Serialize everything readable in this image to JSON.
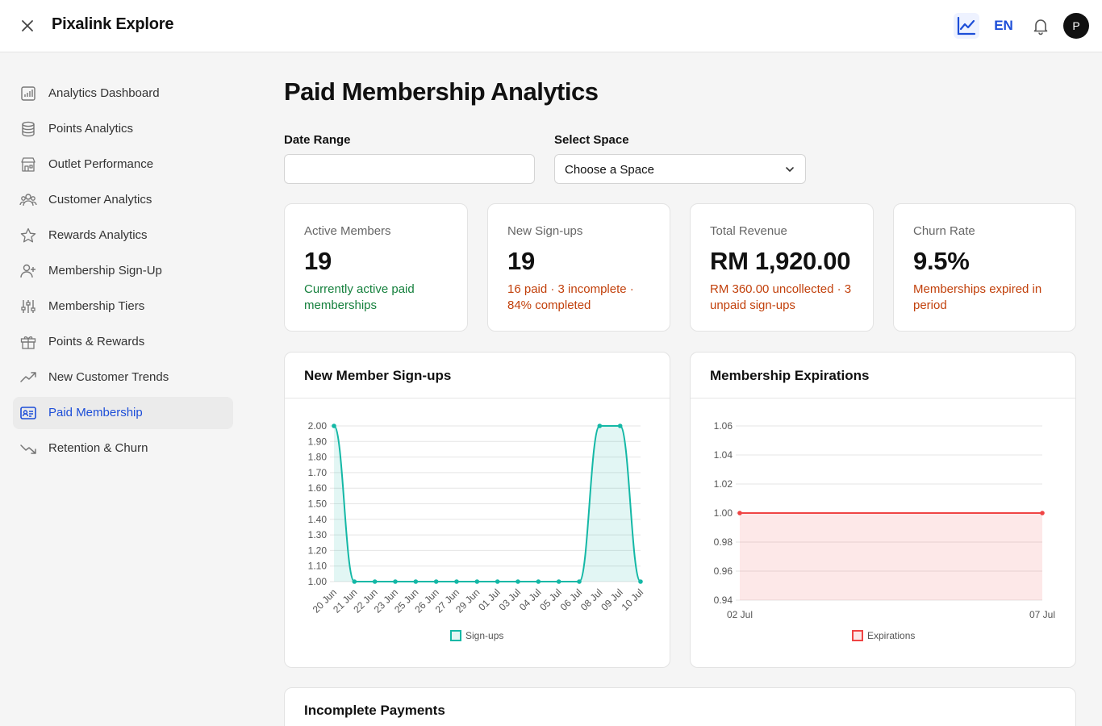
{
  "header": {
    "app_title": "Pixalink Explore",
    "lang": "EN",
    "avatar_letter": "P"
  },
  "sidebar": {
    "items": [
      {
        "label": "Analytics Dashboard",
        "icon": "bar-chart-icon",
        "active": false
      },
      {
        "label": "Points Analytics",
        "icon": "database-icon",
        "active": false
      },
      {
        "label": "Outlet Performance",
        "icon": "store-icon",
        "active": false
      },
      {
        "label": "Customer Analytics",
        "icon": "users-icon",
        "active": false
      },
      {
        "label": "Rewards Analytics",
        "icon": "star-icon",
        "active": false
      },
      {
        "label": "Membership Sign-Up",
        "icon": "user-plus-icon",
        "active": false
      },
      {
        "label": "Membership Tiers",
        "icon": "sliders-icon",
        "active": false
      },
      {
        "label": "Points & Rewards",
        "icon": "gift-icon",
        "active": false
      },
      {
        "label": "New Customer Trends",
        "icon": "trending-up-icon",
        "active": false
      },
      {
        "label": "Paid Membership",
        "icon": "id-card-icon",
        "active": true
      },
      {
        "label": "Retention & Churn",
        "icon": "trending-down-icon",
        "active": false
      }
    ]
  },
  "main": {
    "title": "Paid Membership Analytics",
    "date_range_label": "Date Range",
    "date_range_value": "",
    "select_space_label": "Select Space",
    "select_space_value": "Choose a Space"
  },
  "stats": [
    {
      "label": "Active Members",
      "value": "19",
      "note": "Currently active paid memberships",
      "tone": "green"
    },
    {
      "label": "New Sign-ups",
      "value": "19",
      "note": "16 paid · 3 incomplete · 84% completed",
      "tone": "orange"
    },
    {
      "label": "Total Revenue",
      "value": "RM 1,920.00",
      "note": "RM 360.00 uncollected · 3 unpaid sign-ups",
      "tone": "orange"
    },
    {
      "label": "Churn Rate",
      "value": "9.5%",
      "note": "Memberships expired in period",
      "tone": "orange"
    }
  ],
  "colors": {
    "accent": "#1d4ed8",
    "signups_line": "#14b8a6",
    "expirations_line": "#ef4444",
    "positive": "#15803d",
    "warning": "#c2410c"
  },
  "sections": {
    "signups_title": "New Member Sign-ups",
    "expirations_title": "Membership Expirations",
    "incomplete_title": "Incomplete Payments"
  },
  "chart_data": [
    {
      "type": "area",
      "title": "New Member Sign-ups",
      "categories": [
        "20 Jun",
        "21 Jun",
        "22 Jun",
        "23 Jun",
        "25 Jun",
        "26 Jun",
        "27 Jun",
        "29 Jun",
        "01 Jul",
        "03 Jul",
        "04 Jul",
        "05 Jul",
        "06 Jul",
        "08 Jul",
        "09 Jul",
        "10 Jul"
      ],
      "series": [
        {
          "name": "Sign-ups",
          "values": [
            2,
            1,
            1,
            1,
            1,
            1,
            1,
            1,
            1,
            1,
            1,
            1,
            1,
            2,
            2,
            1
          ]
        }
      ],
      "ylim": [
        1.0,
        2.0
      ],
      "yticks": [
        "1.00",
        "1.10",
        "1.20",
        "1.30",
        "1.40",
        "1.50",
        "1.60",
        "1.70",
        "1.80",
        "1.90",
        "2.00"
      ],
      "legend": "bottom",
      "grid": true
    },
    {
      "type": "area",
      "title": "Membership Expirations",
      "categories": [
        "02 Jul",
        "07 Jul"
      ],
      "series": [
        {
          "name": "Expirations",
          "values": [
            1,
            1
          ]
        }
      ],
      "ylim": [
        0.94,
        1.06
      ],
      "yticks": [
        "0.94",
        "0.96",
        "0.98",
        "1.00",
        "1.02",
        "1.04",
        "1.06"
      ],
      "legend": "bottom",
      "grid": true
    }
  ]
}
